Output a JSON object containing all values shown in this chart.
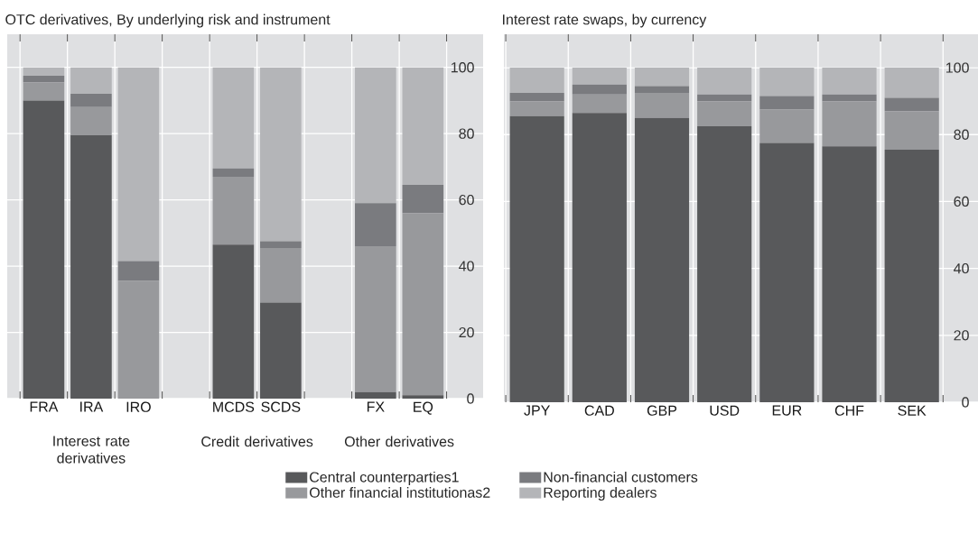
{
  "chart_data": [
    {
      "type": "bar",
      "title": "OTC derivatives, By underlying risk and instrument",
      "stacked": true,
      "grid": true,
      "legend": "bottom",
      "categories": [
        "FRA",
        "IRA",
        "IRO",
        null,
        "MCDS",
        "SCDS",
        null,
        "FX",
        "EQ"
      ],
      "ylim": [
        0,
        110
      ],
      "yticks": [
        0,
        20,
        40,
        60,
        80,
        100
      ],
      "series": [
        {
          "name": "Central counterparties1",
          "color": "#58595b",
          "values": [
            90,
            79.5,
            0,
            null,
            46.5,
            29,
            null,
            2,
            1
          ]
        },
        {
          "name": "Other financial institutionas2",
          "color": "#98999c",
          "values": [
            5.5,
            8.5,
            35.5,
            null,
            20.5,
            16.5,
            null,
            44,
            55
          ]
        },
        {
          "name": "Non-financial customers",
          "color": "#7a7b7f",
          "values": [
            2,
            4,
            6,
            null,
            2.5,
            2,
            null,
            13,
            8.5
          ]
        },
        {
          "name": "Reporting dealers",
          "color": "#b4b5b8",
          "values": [
            2.5,
            8,
            58.5,
            null,
            30.5,
            52.5,
            null,
            41,
            35.5
          ]
        }
      ],
      "annotations": [
        "Interest rate derivatives",
        "Credit derivatives",
        "Other derivatives"
      ]
    },
    {
      "type": "bar",
      "title": "Interest rate swaps, by currency",
      "stacked": true,
      "grid": true,
      "categories": [
        "JPY",
        "CAD",
        "GBP",
        "USD",
        "EUR",
        "CHF",
        "SEK"
      ],
      "ylim": [
        0,
        110
      ],
      "yticks": [
        0,
        20,
        40,
        60,
        80,
        100
      ],
      "series": [
        {
          "color": "#58595b",
          "values": [
            85.5,
            86.5,
            85,
            82.5,
            77.5,
            76.5,
            75.5
          ]
        },
        {
          "color": "#98999c",
          "values": [
            4.5,
            5.5,
            7.5,
            7.5,
            10,
            13.5,
            11.5
          ]
        },
        {
          "color": "#7a7b7f",
          "values": [
            2.5,
            3,
            2,
            2,
            4,
            2,
            4
          ]
        },
        {
          "color": "#b4b5b8",
          "values": [
            7.5,
            5,
            5.5,
            8,
            8.5,
            8,
            9
          ]
        }
      ]
    }
  ]
}
